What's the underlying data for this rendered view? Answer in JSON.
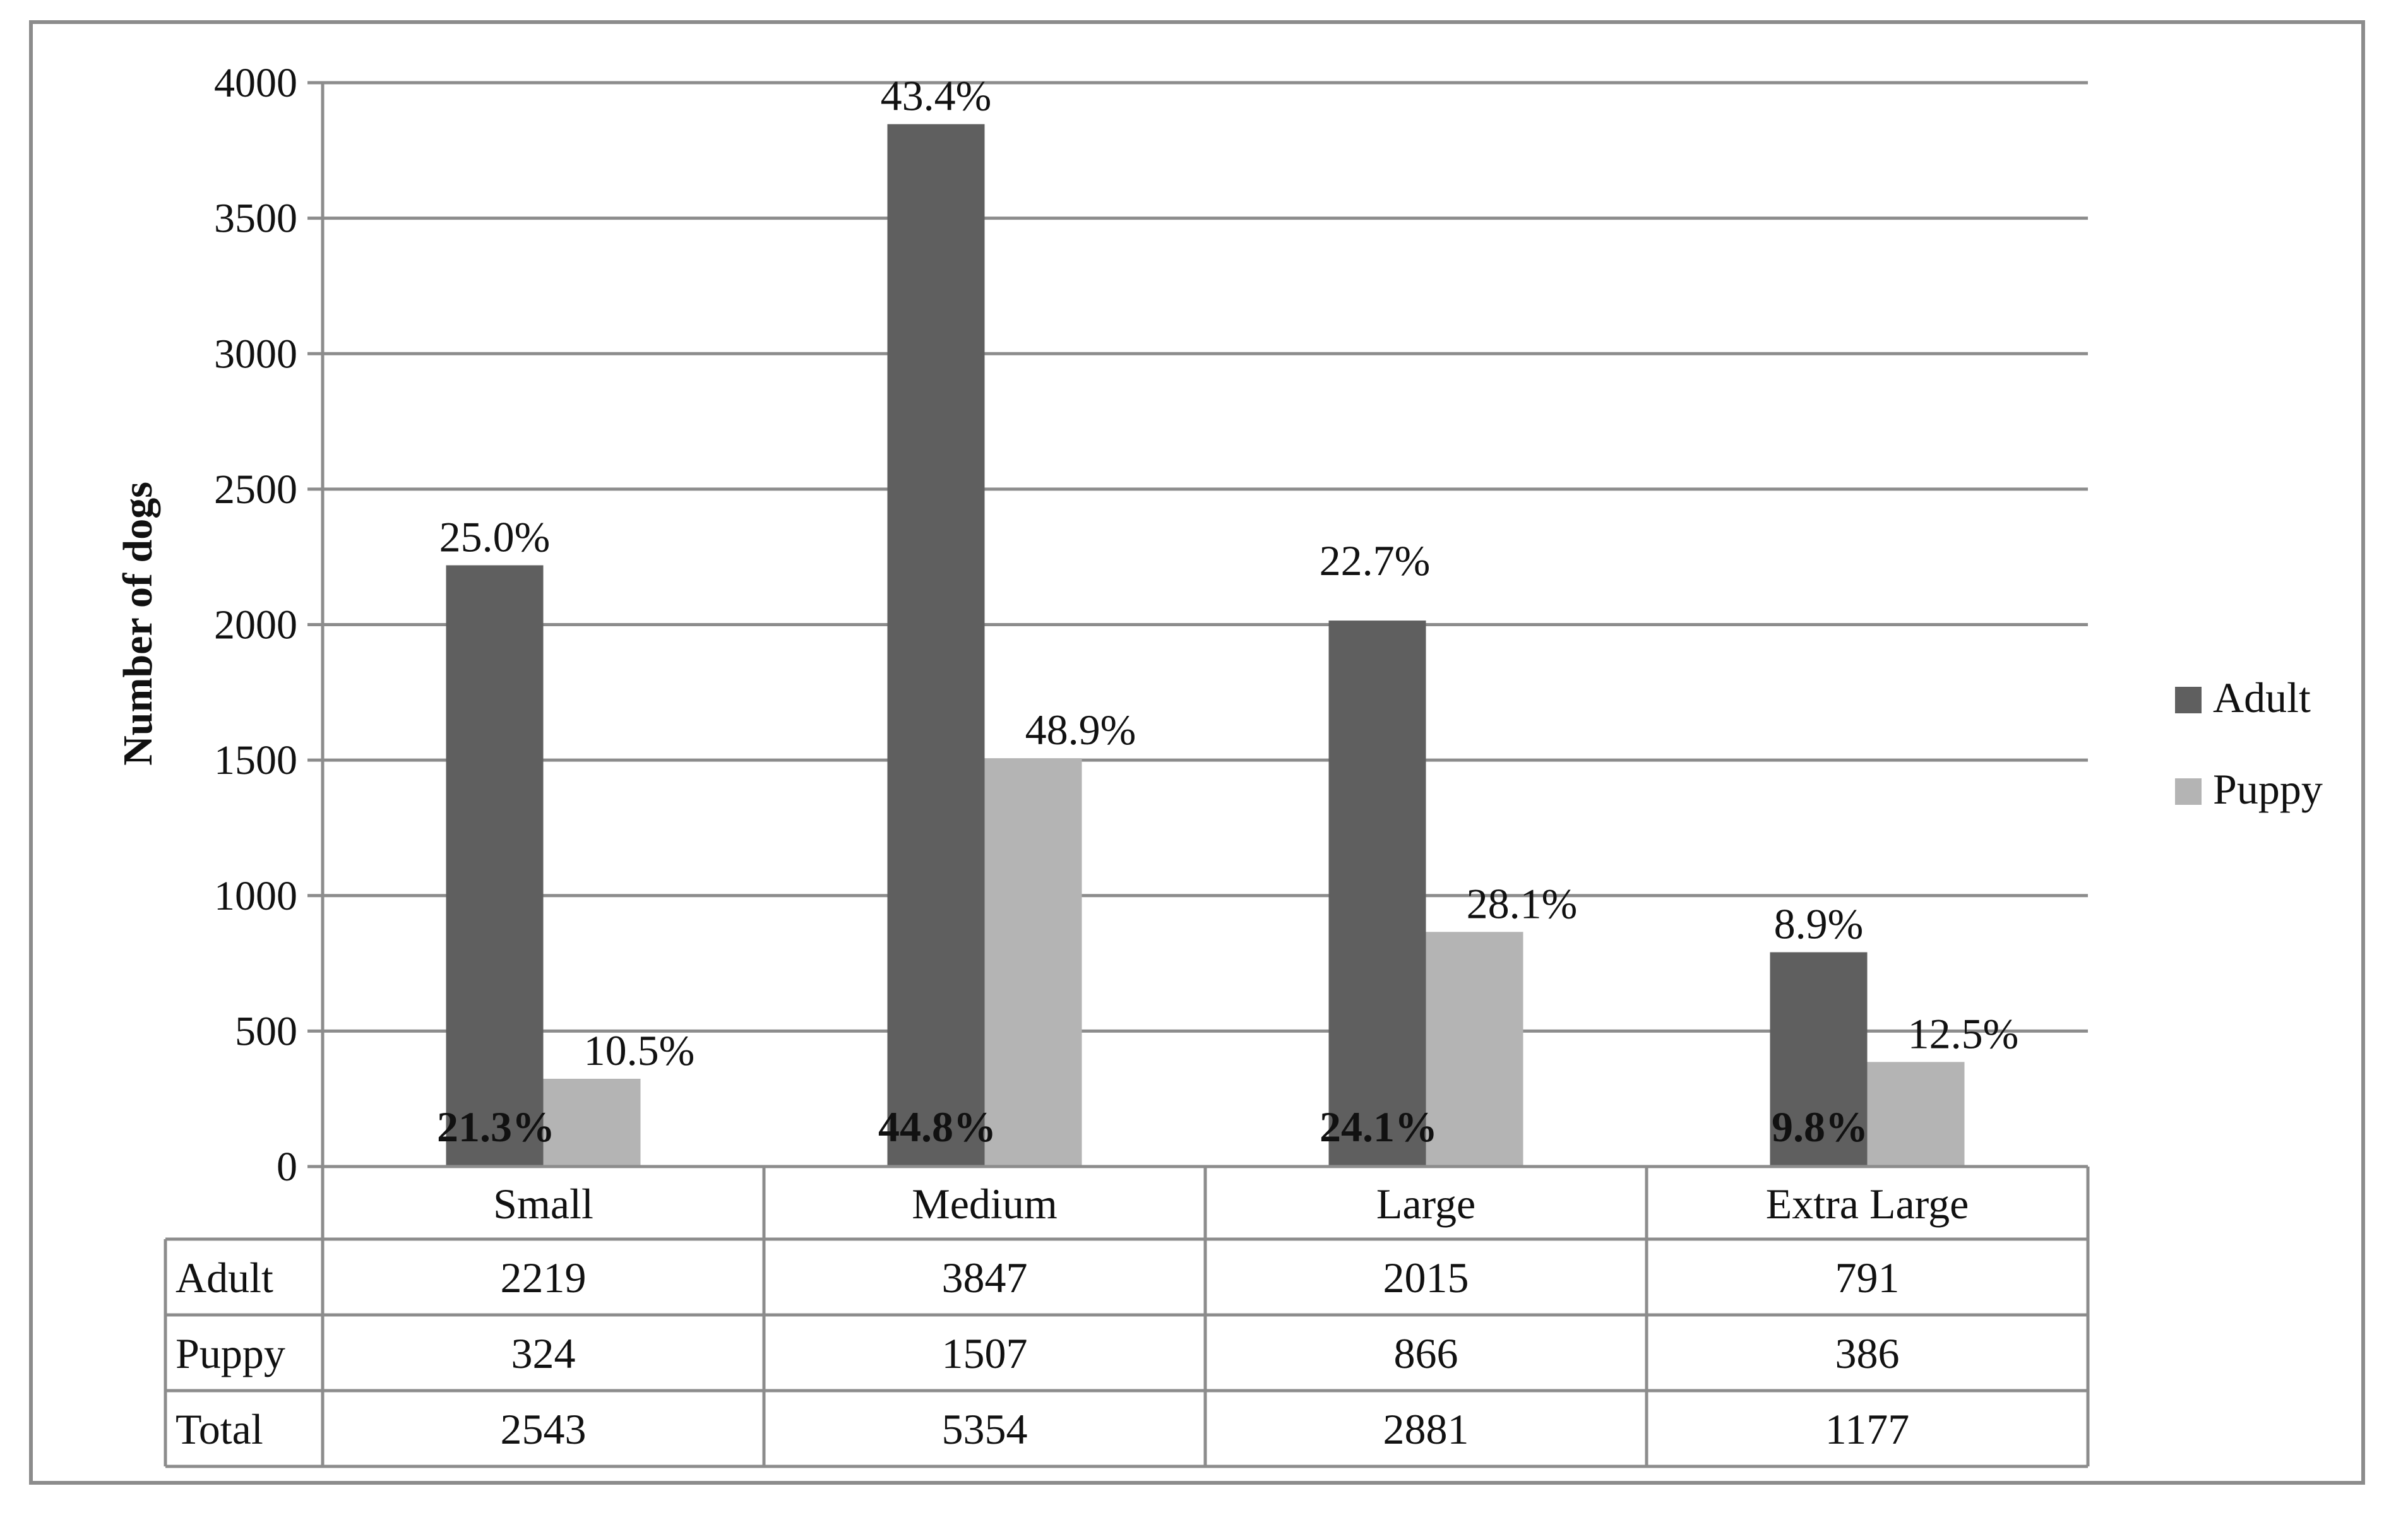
{
  "chart_data": {
    "type": "bar",
    "ylabel": "Number of dogs",
    "ylim": [
      0,
      4000
    ],
    "yticks": [
      0,
      500,
      1000,
      1500,
      2000,
      2500,
      3000,
      3500,
      4000
    ],
    "categories": [
      "Small",
      "Medium",
      "Large",
      "Extra Large"
    ],
    "series": [
      {
        "name": "Adult",
        "color": "#5f5f5f",
        "values": [
          2219,
          3847,
          2015,
          791
        ],
        "labels": [
          "25.0%",
          "43.4%",
          "22.7%",
          "8.9%"
        ]
      },
      {
        "name": "Puppy",
        "color": "#b4b4b4",
        "values": [
          324,
          1507,
          866,
          386
        ],
        "labels": [
          "10.5%",
          "48.9%",
          "28.1%",
          "12.5%"
        ]
      }
    ],
    "category_share_labels": [
      "21.3%",
      "44.8%",
      "24.1%",
      "9.8%"
    ],
    "grid": true,
    "legend": "right",
    "data_table": {
      "rows": [
        {
          "label": "Adult",
          "values": [
            "2219",
            "3847",
            "2015",
            "791"
          ]
        },
        {
          "label": "Puppy",
          "values": [
            "324",
            "1507",
            "866",
            "386"
          ]
        },
        {
          "label": "Total",
          "values": [
            "2543",
            "5354",
            "2881",
            "1177"
          ]
        }
      ]
    }
  }
}
